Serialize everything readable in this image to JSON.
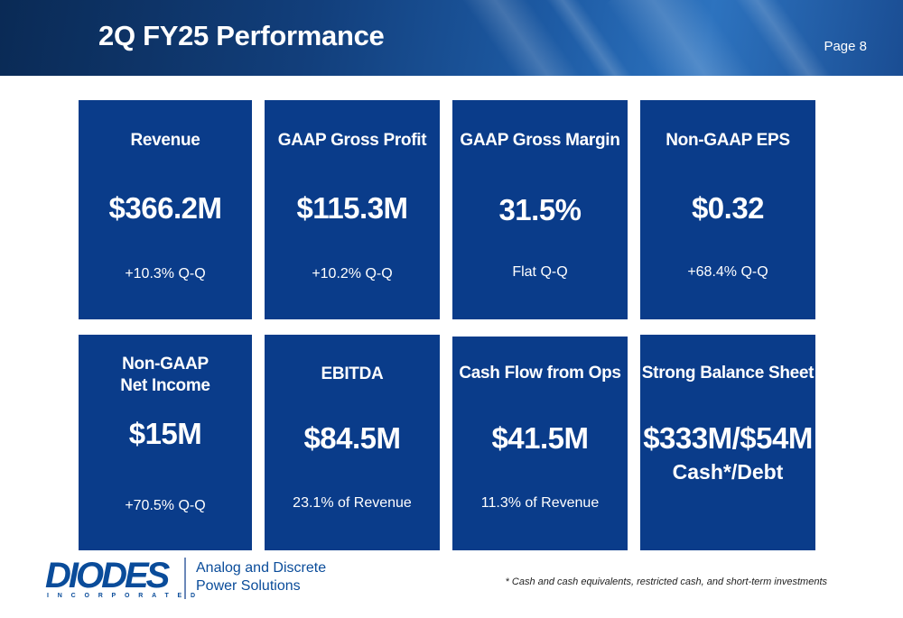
{
  "header": {
    "title": "2Q FY25 Performance",
    "page": "Page 8"
  },
  "cards": [
    {
      "label": "Revenue",
      "value": "$366.2M",
      "note": "+10.3% Q-Q"
    },
    {
      "label": "GAAP Gross Profit",
      "value": "$115.3M",
      "note": "+10.2% Q-Q"
    },
    {
      "label": "GAAP Gross Margin",
      "value": "31.5%",
      "note": "Flat Q-Q"
    },
    {
      "label": "Non-GAAP EPS",
      "value": "$0.32",
      "note": "+68.4% Q-Q"
    },
    {
      "label_line1": "Non-GAAP",
      "label_line2": "Net Income",
      "value": "$15M",
      "note": "+70.5% Q-Q"
    },
    {
      "label": "EBITDA",
      "value": "$84.5M",
      "note": "23.1% of Revenue"
    },
    {
      "label": "Cash Flow from Ops",
      "value": "$41.5M",
      "note": "11.3% of Revenue"
    },
    {
      "label": "Strong Balance Sheet",
      "value": "$333M/$54M",
      "sub": "Cash*/Debt"
    }
  ],
  "footer": {
    "logo_word": "DIODES",
    "logo_sub": "INCORPORATED",
    "tagline_line1": "Analog and Discrete",
    "tagline_line2": "Power Solutions",
    "footnote": "* Cash and cash equivalents, restricted cash, and short-term investments"
  },
  "colors": {
    "card_bg": "#0a3c8a",
    "brand_blue": "#0a4c9a",
    "header_dark": "#0a2a55"
  }
}
